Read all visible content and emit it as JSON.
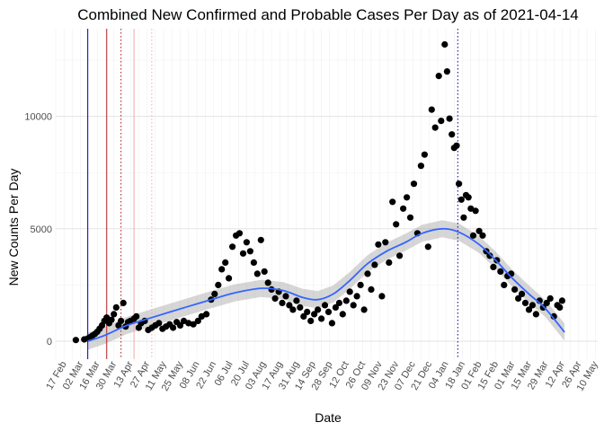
{
  "chart_data": {
    "type": "scatter",
    "title": "Combined New Confirmed and Probable Cases Per Day as of 2021-04-14",
    "xlabel": "Date",
    "ylabel": "New Counts Per Day",
    "ylim": [
      -800,
      13900
    ],
    "yticks": [
      0,
      5000,
      10000
    ],
    "ytick_labels": [
      "0",
      "5000",
      "10000"
    ],
    "xlim": [
      "2020-02-10",
      "2021-05-12"
    ],
    "xtick_labels": [
      "17 Feb",
      "02 Mar",
      "16 Mar",
      "30 Mar",
      "13 Apr",
      "27 Apr",
      "11 May",
      "25 May",
      "08 Jun",
      "22 Jun",
      "06 Jul",
      "20 Jul",
      "03 Aug",
      "17 Aug",
      "31 Aug",
      "14 Sep",
      "28 Sep",
      "12 Oct",
      "26 Oct",
      "09 Nov",
      "23 Nov",
      "07 Dec",
      "21 Dec",
      "04 Jan",
      "18 Jan",
      "01 Feb",
      "15 Feb",
      "01 Mar",
      "15 Mar",
      "29 Mar",
      "12 Apr",
      "26 Apr",
      "10 May"
    ],
    "xtick_dates": [
      "2020-02-17",
      "2020-03-02",
      "2020-03-16",
      "2020-03-30",
      "2020-04-13",
      "2020-04-27",
      "2020-05-11",
      "2020-05-25",
      "2020-06-08",
      "2020-06-22",
      "2020-07-06",
      "2020-07-20",
      "2020-08-03",
      "2020-08-17",
      "2020-08-31",
      "2020-09-14",
      "2020-09-28",
      "2020-10-12",
      "2020-10-26",
      "2020-11-09",
      "2020-11-23",
      "2020-12-07",
      "2020-12-21",
      "2021-01-04",
      "2021-01-18",
      "2021-02-01",
      "2021-02-15",
      "2021-03-01",
      "2021-03-15",
      "2021-03-29",
      "2021-04-12",
      "2021-04-26",
      "2021-05-10"
    ],
    "grid": true,
    "vlines": [
      {
        "date": "2020-03-08",
        "color": "#0000cc",
        "style": "solid"
      },
      {
        "date": "2020-03-24",
        "color": "#b22222",
        "style": "solid"
      },
      {
        "date": "2020-04-05",
        "color": "#b22222",
        "style": "dotted"
      },
      {
        "date": "2020-04-16",
        "color": "#f4a6a6",
        "style": "solid"
      },
      {
        "date": "2020-05-01",
        "color": "#f4a6a6",
        "style": "dotted"
      },
      {
        "date": "2021-01-14",
        "color": "#00008b",
        "style": "dotted"
      }
    ],
    "smooth": [
      {
        "date": "2020-03-08",
        "value": 0
      },
      {
        "date": "2020-03-22",
        "value": 250
      },
      {
        "date": "2020-04-10",
        "value": 700
      },
      {
        "date": "2020-05-01",
        "value": 1050
      },
      {
        "date": "2020-06-01",
        "value": 1550
      },
      {
        "date": "2020-06-20",
        "value": 1850
      },
      {
        "date": "2020-07-10",
        "value": 2150
      },
      {
        "date": "2020-08-01",
        "value": 2350
      },
      {
        "date": "2020-08-20",
        "value": 2250
      },
      {
        "date": "2020-09-05",
        "value": 1950
      },
      {
        "date": "2020-09-18",
        "value": 1850
      },
      {
        "date": "2020-10-01",
        "value": 2100
      },
      {
        "date": "2020-10-15",
        "value": 2700
      },
      {
        "date": "2020-10-30",
        "value": 3450
      },
      {
        "date": "2020-11-15",
        "value": 4000
      },
      {
        "date": "2020-12-01",
        "value": 4400
      },
      {
        "date": "2020-12-15",
        "value": 4800
      },
      {
        "date": "2021-01-01",
        "value": 5000
      },
      {
        "date": "2021-01-15",
        "value": 4850
      },
      {
        "date": "2021-02-01",
        "value": 4300
      },
      {
        "date": "2021-02-15",
        "value": 3600
      },
      {
        "date": "2021-03-01",
        "value": 2800
      },
      {
        "date": "2021-03-15",
        "value": 2100
      },
      {
        "date": "2021-03-29",
        "value": 1450
      },
      {
        "date": "2021-04-14",
        "value": 400
      }
    ],
    "points": [
      [
        "2020-02-27",
        50
      ],
      [
        "2020-03-05",
        80
      ],
      [
        "2020-03-08",
        120
      ],
      [
        "2020-03-10",
        180
      ],
      [
        "2020-03-12",
        250
      ],
      [
        "2020-03-14",
        320
      ],
      [
        "2020-03-16",
        420
      ],
      [
        "2020-03-18",
        550
      ],
      [
        "2020-03-20",
        700
      ],
      [
        "2020-03-22",
        900
      ],
      [
        "2020-03-24",
        1050
      ],
      [
        "2020-03-26",
        800
      ],
      [
        "2020-03-28",
        950
      ],
      [
        "2020-03-30",
        1200
      ],
      [
        "2020-04-01",
        1500
      ],
      [
        "2020-04-03",
        700
      ],
      [
        "2020-04-05",
        900
      ],
      [
        "2020-04-07",
        1700
      ],
      [
        "2020-04-09",
        650
      ],
      [
        "2020-04-11",
        850
      ],
      [
        "2020-04-13",
        900
      ],
      [
        "2020-04-16",
        1000
      ],
      [
        "2020-04-18",
        1100
      ],
      [
        "2020-04-20",
        600
      ],
      [
        "2020-04-22",
        800
      ],
      [
        "2020-04-25",
        900
      ],
      [
        "2020-04-28",
        500
      ],
      [
        "2020-05-01",
        600
      ],
      [
        "2020-05-04",
        700
      ],
      [
        "2020-05-07",
        800
      ],
      [
        "2020-05-10",
        550
      ],
      [
        "2020-05-13",
        650
      ],
      [
        "2020-05-16",
        750
      ],
      [
        "2020-05-19",
        600
      ],
      [
        "2020-05-22",
        850
      ],
      [
        "2020-05-25",
        700
      ],
      [
        "2020-05-28",
        900
      ],
      [
        "2020-06-01",
        800
      ],
      [
        "2020-06-05",
        750
      ],
      [
        "2020-06-09",
        900
      ],
      [
        "2020-06-12",
        1100
      ],
      [
        "2020-06-16",
        1200
      ],
      [
        "2020-06-20",
        1850
      ],
      [
        "2020-06-23",
        2100
      ],
      [
        "2020-06-26",
        2500
      ],
      [
        "2020-06-29",
        3200
      ],
      [
        "2020-07-02",
        3500
      ],
      [
        "2020-07-05",
        2800
      ],
      [
        "2020-07-08",
        4200
      ],
      [
        "2020-07-11",
        4700
      ],
      [
        "2020-07-14",
        4800
      ],
      [
        "2020-07-17",
        3900
      ],
      [
        "2020-07-20",
        4400
      ],
      [
        "2020-07-23",
        4000
      ],
      [
        "2020-07-26",
        3500
      ],
      [
        "2020-07-29",
        3000
      ],
      [
        "2020-08-01",
        4500
      ],
      [
        "2020-08-04",
        3100
      ],
      [
        "2020-08-07",
        2600
      ],
      [
        "2020-08-10",
        2300
      ],
      [
        "2020-08-13",
        1900
      ],
      [
        "2020-08-16",
        2200
      ],
      [
        "2020-08-19",
        1700
      ],
      [
        "2020-08-22",
        2000
      ],
      [
        "2020-08-25",
        1600
      ],
      [
        "2020-08-28",
        1400
      ],
      [
        "2020-08-31",
        1800
      ],
      [
        "2020-09-03",
        1500
      ],
      [
        "2020-09-06",
        1100
      ],
      [
        "2020-09-09",
        1300
      ],
      [
        "2020-09-12",
        900
      ],
      [
        "2020-09-15",
        1200
      ],
      [
        "2020-09-18",
        1400
      ],
      [
        "2020-09-21",
        1000
      ],
      [
        "2020-09-24",
        1600
      ],
      [
        "2020-09-27",
        1300
      ],
      [
        "2020-09-30",
        800
      ],
      [
        "2020-10-03",
        1500
      ],
      [
        "2020-10-06",
        1700
      ],
      [
        "2020-10-09",
        1200
      ],
      [
        "2020-10-12",
        1800
      ],
      [
        "2020-10-15",
        2200
      ],
      [
        "2020-10-18",
        1600
      ],
      [
        "2020-10-21",
        2000
      ],
      [
        "2020-10-24",
        2500
      ],
      [
        "2020-10-27",
        1400
      ],
      [
        "2020-10-30",
        3000
      ],
      [
        "2020-11-02",
        2300
      ],
      [
        "2020-11-05",
        3400
      ],
      [
        "2020-11-08",
        4300
      ],
      [
        "2020-11-11",
        2000
      ],
      [
        "2020-11-14",
        4400
      ],
      [
        "2020-11-17",
        3500
      ],
      [
        "2020-11-20",
        6200
      ],
      [
        "2020-11-23",
        5200
      ],
      [
        "2020-11-26",
        3800
      ],
      [
        "2020-11-29",
        5900
      ],
      [
        "2020-12-02",
        6400
      ],
      [
        "2020-12-05",
        5500
      ],
      [
        "2020-12-08",
        7000
      ],
      [
        "2020-12-11",
        4800
      ],
      [
        "2020-12-14",
        7800
      ],
      [
        "2020-12-17",
        8300
      ],
      [
        "2020-12-20",
        4200
      ],
      [
        "2020-12-23",
        10300
      ],
      [
        "2020-12-26",
        9500
      ],
      [
        "2020-12-29",
        11800
      ],
      [
        "2020-12-31",
        9800
      ],
      [
        "2021-01-03",
        13200
      ],
      [
        "2021-01-05",
        12000
      ],
      [
        "2021-01-07",
        9900
      ],
      [
        "2021-01-09",
        9200
      ],
      [
        "2021-01-11",
        8600
      ],
      [
        "2021-01-13",
        8700
      ],
      [
        "2021-01-15",
        7000
      ],
      [
        "2021-01-17",
        6300
      ],
      [
        "2021-01-19",
        5500
      ],
      [
        "2021-01-21",
        6500
      ],
      [
        "2021-01-23",
        6400
      ],
      [
        "2021-01-25",
        5900
      ],
      [
        "2021-01-27",
        4700
      ],
      [
        "2021-01-29",
        5800
      ],
      [
        "2021-02-01",
        4900
      ],
      [
        "2021-02-04",
        4700
      ],
      [
        "2021-02-07",
        4000
      ],
      [
        "2021-02-10",
        3800
      ],
      [
        "2021-02-13",
        3300
      ],
      [
        "2021-02-16",
        3600
      ],
      [
        "2021-02-19",
        3100
      ],
      [
        "2021-02-22",
        2500
      ],
      [
        "2021-02-25",
        2900
      ],
      [
        "2021-02-28",
        3000
      ],
      [
        "2021-03-03",
        2300
      ],
      [
        "2021-03-06",
        1900
      ],
      [
        "2021-03-09",
        2100
      ],
      [
        "2021-03-12",
        1700
      ],
      [
        "2021-03-15",
        1400
      ],
      [
        "2021-03-18",
        1600
      ],
      [
        "2021-03-21",
        1200
      ],
      [
        "2021-03-24",
        1800
      ],
      [
        "2021-03-27",
        1500
      ],
      [
        "2021-03-30",
        1700
      ],
      [
        "2021-04-02",
        1900
      ],
      [
        "2021-04-05",
        1100
      ],
      [
        "2021-04-08",
        1600
      ],
      [
        "2021-04-10",
        1500
      ],
      [
        "2021-04-12",
        1800
      ]
    ]
  }
}
